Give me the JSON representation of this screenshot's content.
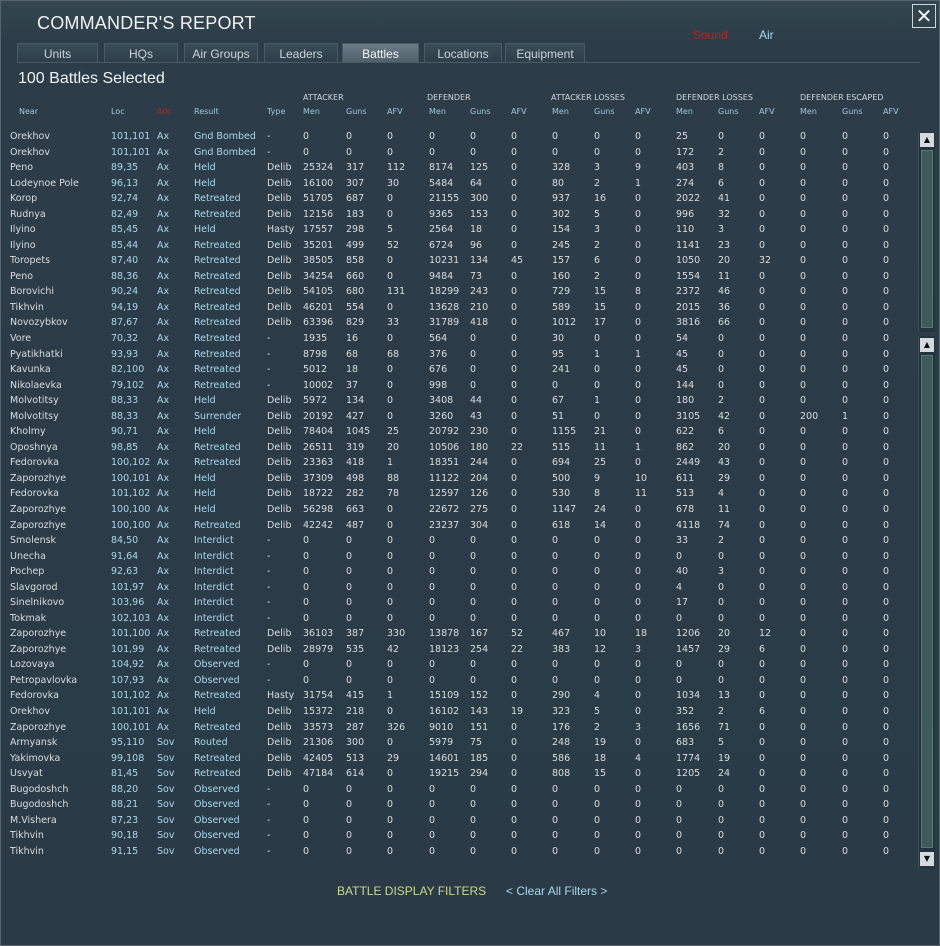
{
  "window": {
    "title": "COMMANDER'S REPORT",
    "close_icon": "close-icon",
    "toggles": {
      "sound": "Sound",
      "air": "Air",
      "sound_color": "#b0251c",
      "air_color": "#a8d8ec"
    }
  },
  "tabs": [
    {
      "label": "Units"
    },
    {
      "label": "HQs"
    },
    {
      "label": "Air Groups"
    },
    {
      "label": "Leaders"
    },
    {
      "label": "Battles",
      "active": true
    },
    {
      "label": "Locations"
    },
    {
      "label": "Equipment"
    }
  ],
  "summary": {
    "selected": "100 Battles Selected"
  },
  "header": {
    "groups": {
      "attacker": "ATTACKER",
      "defender": "DEFENDER",
      "attacker_losses": "ATTACKER LOSSES",
      "defender_losses": "DEFENDER LOSSES",
      "defender_escaped": "DEFENDER ESCAPED"
    },
    "columns": {
      "near": "Near",
      "loc": "Loc",
      "side": "Atk",
      "result": "Result",
      "type": "Type",
      "men": "Men",
      "guns": "Guns",
      "afv": "AFV"
    }
  },
  "battles": [
    [
      "Orekhov",
      "101,101",
      "Ax",
      "Gnd Bombed",
      "-",
      "0",
      "0",
      "0",
      "0",
      "0",
      "0",
      "0",
      "0",
      "0",
      "25",
      "0",
      "0",
      "0",
      "0",
      "0"
    ],
    [
      "Orekhov",
      "101,101",
      "Ax",
      "Gnd Bombed",
      "-",
      "0",
      "0",
      "0",
      "0",
      "0",
      "0",
      "0",
      "0",
      "0",
      "172",
      "2",
      "0",
      "0",
      "0",
      "0"
    ],
    [
      "Peno",
      "89,35",
      "Ax",
      "Held",
      "Delib",
      "25324",
      "317",
      "112",
      "8174",
      "125",
      "0",
      "328",
      "3",
      "9",
      "403",
      "8",
      "0",
      "0",
      "0",
      "0"
    ],
    [
      "Lodeynoe Pole",
      "96,13",
      "Ax",
      "Held",
      "Delib",
      "16100",
      "307",
      "30",
      "5484",
      "64",
      "0",
      "80",
      "2",
      "1",
      "274",
      "6",
      "0",
      "0",
      "0",
      "0"
    ],
    [
      "Korop",
      "92,74",
      "Ax",
      "Retreated",
      "Delib",
      "51705",
      "687",
      "0",
      "21155",
      "300",
      "0",
      "937",
      "16",
      "0",
      "2022",
      "41",
      "0",
      "0",
      "0",
      "0"
    ],
    [
      "Rudnya",
      "82,49",
      "Ax",
      "Retreated",
      "Delib",
      "12156",
      "183",
      "0",
      "9365",
      "153",
      "0",
      "302",
      "5",
      "0",
      "996",
      "32",
      "0",
      "0",
      "0",
      "0"
    ],
    [
      "Ilyino",
      "85,45",
      "Ax",
      "Held",
      "Hasty",
      "17557",
      "298",
      "5",
      "2564",
      "18",
      "0",
      "154",
      "3",
      "0",
      "110",
      "3",
      "0",
      "0",
      "0",
      "0"
    ],
    [
      "Ilyino",
      "85,44",
      "Ax",
      "Retreated",
      "Delib",
      "35201",
      "499",
      "52",
      "6724",
      "96",
      "0",
      "245",
      "2",
      "0",
      "1141",
      "23",
      "0",
      "0",
      "0",
      "0"
    ],
    [
      "Toropets",
      "87,40",
      "Ax",
      "Retreated",
      "Delib",
      "38505",
      "858",
      "0",
      "10231",
      "134",
      "45",
      "157",
      "6",
      "0",
      "1050",
      "20",
      "32",
      "0",
      "0",
      "0"
    ],
    [
      "Peno",
      "88,36",
      "Ax",
      "Retreated",
      "Delib",
      "34254",
      "660",
      "0",
      "9484",
      "73",
      "0",
      "160",
      "2",
      "0",
      "1554",
      "11",
      "0",
      "0",
      "0",
      "0"
    ],
    [
      "Borovichi",
      "90,24",
      "Ax",
      "Retreated",
      "Delib",
      "54105",
      "680",
      "131",
      "18299",
      "243",
      "0",
      "729",
      "15",
      "8",
      "2372",
      "46",
      "0",
      "0",
      "0",
      "0"
    ],
    [
      "Tikhvin",
      "94,19",
      "Ax",
      "Retreated",
      "Delib",
      "46201",
      "554",
      "0",
      "13628",
      "210",
      "0",
      "589",
      "15",
      "0",
      "2015",
      "36",
      "0",
      "0",
      "0",
      "0"
    ],
    [
      "Novozybkov",
      "87,67",
      "Ax",
      "Retreated",
      "Delib",
      "63396",
      "829",
      "33",
      "31789",
      "418",
      "0",
      "1012",
      "17",
      "0",
      "3816",
      "66",
      "0",
      "0",
      "0",
      "0"
    ],
    [
      "Vore",
      "70,32",
      "Ax",
      "Retreated",
      "-",
      "1935",
      "16",
      "0",
      "564",
      "0",
      "0",
      "30",
      "0",
      "0",
      "54",
      "0",
      "0",
      "0",
      "0",
      "0"
    ],
    [
      "Pyatikhatki",
      "93,93",
      "Ax",
      "Retreated",
      "-",
      "8798",
      "68",
      "68",
      "376",
      "0",
      "0",
      "95",
      "1",
      "1",
      "45",
      "0",
      "0",
      "0",
      "0",
      "0"
    ],
    [
      "Kavunka",
      "82,100",
      "Ax",
      "Retreated",
      "-",
      "5012",
      "18",
      "0",
      "676",
      "0",
      "0",
      "241",
      "0",
      "0",
      "45",
      "0",
      "0",
      "0",
      "0",
      "0"
    ],
    [
      "Nikolaevka",
      "79,102",
      "Ax",
      "Retreated",
      "-",
      "10002",
      "37",
      "0",
      "998",
      "0",
      "0",
      "0",
      "0",
      "0",
      "144",
      "0",
      "0",
      "0",
      "0",
      "0"
    ],
    [
      "Molvotitsy",
      "88,33",
      "Ax",
      "Held",
      "Delib",
      "5972",
      "134",
      "0",
      "3408",
      "44",
      "0",
      "67",
      "1",
      "0",
      "180",
      "2",
      "0",
      "0",
      "0",
      "0"
    ],
    [
      "Molvotitsy",
      "88,33",
      "Ax",
      "Surrender",
      "Delib",
      "20192",
      "427",
      "0",
      "3260",
      "43",
      "0",
      "51",
      "0",
      "0",
      "3105",
      "42",
      "0",
      "200",
      "1",
      "0"
    ],
    [
      "Kholmy",
      "90,71",
      "Ax",
      "Held",
      "Delib",
      "78404",
      "1045",
      "25",
      "20792",
      "230",
      "0",
      "1155",
      "21",
      "0",
      "622",
      "6",
      "0",
      "0",
      "0",
      "0"
    ],
    [
      "Oposhnya",
      "98,85",
      "Ax",
      "Retreated",
      "Delib",
      "26511",
      "319",
      "20",
      "10506",
      "180",
      "22",
      "515",
      "11",
      "1",
      "862",
      "20",
      "0",
      "0",
      "0",
      "0"
    ],
    [
      "Fedorovka",
      "100,102",
      "Ax",
      "Retreated",
      "Delib",
      "23363",
      "418",
      "1",
      "18351",
      "244",
      "0",
      "694",
      "25",
      "0",
      "2449",
      "43",
      "0",
      "0",
      "0",
      "0"
    ],
    [
      "Zaporozhye",
      "100,101",
      "Ax",
      "Held",
      "Delib",
      "37309",
      "498",
      "88",
      "11122",
      "204",
      "0",
      "500",
      "9",
      "10",
      "611",
      "29",
      "0",
      "0",
      "0",
      "0"
    ],
    [
      "Fedorovka",
      "101,102",
      "Ax",
      "Held",
      "Delib",
      "18722",
      "282",
      "78",
      "12597",
      "126",
      "0",
      "530",
      "8",
      "11",
      "513",
      "4",
      "0",
      "0",
      "0",
      "0"
    ],
    [
      "Zaporozhye",
      "100,100",
      "Ax",
      "Held",
      "Delib",
      "56298",
      "663",
      "0",
      "22672",
      "275",
      "0",
      "1147",
      "24",
      "0",
      "678",
      "11",
      "0",
      "0",
      "0",
      "0"
    ],
    [
      "Zaporozhye",
      "100,100",
      "Ax",
      "Retreated",
      "Delib",
      "42242",
      "487",
      "0",
      "23237",
      "304",
      "0",
      "618",
      "14",
      "0",
      "4118",
      "74",
      "0",
      "0",
      "0",
      "0"
    ],
    [
      "Smolensk",
      "84,50",
      "Ax",
      "Interdict",
      "-",
      "0",
      "0",
      "0",
      "0",
      "0",
      "0",
      "0",
      "0",
      "0",
      "33",
      "2",
      "0",
      "0",
      "0",
      "0"
    ],
    [
      "Unecha",
      "91,64",
      "Ax",
      "Interdict",
      "-",
      "0",
      "0",
      "0",
      "0",
      "0",
      "0",
      "0",
      "0",
      "0",
      "0",
      "0",
      "0",
      "0",
      "0",
      "0"
    ],
    [
      "Pochep",
      "92,63",
      "Ax",
      "Interdict",
      "-",
      "0",
      "0",
      "0",
      "0",
      "0",
      "0",
      "0",
      "0",
      "0",
      "40",
      "3",
      "0",
      "0",
      "0",
      "0"
    ],
    [
      "Slavgorod",
      "101,97",
      "Ax",
      "Interdict",
      "-",
      "0",
      "0",
      "0",
      "0",
      "0",
      "0",
      "0",
      "0",
      "0",
      "4",
      "0",
      "0",
      "0",
      "0",
      "0"
    ],
    [
      "Sinelnikovo",
      "103,96",
      "Ax",
      "Interdict",
      "-",
      "0",
      "0",
      "0",
      "0",
      "0",
      "0",
      "0",
      "0",
      "0",
      "17",
      "0",
      "0",
      "0",
      "0",
      "0"
    ],
    [
      "Tokmak",
      "102,103",
      "Ax",
      "Interdict",
      "-",
      "0",
      "0",
      "0",
      "0",
      "0",
      "0",
      "0",
      "0",
      "0",
      "0",
      "0",
      "0",
      "0",
      "0",
      "0"
    ],
    [
      "Zaporozhye",
      "101,100",
      "Ax",
      "Retreated",
      "Delib",
      "36103",
      "387",
      "330",
      "13878",
      "167",
      "52",
      "467",
      "10",
      "18",
      "1206",
      "20",
      "12",
      "0",
      "0",
      "0"
    ],
    [
      "Zaporozhye",
      "101,99",
      "Ax",
      "Retreated",
      "Delib",
      "28979",
      "535",
      "42",
      "18123",
      "254",
      "22",
      "383",
      "12",
      "3",
      "1457",
      "29",
      "6",
      "0",
      "0",
      "0"
    ],
    [
      "Lozovaya",
      "104,92",
      "Ax",
      "Observed",
      "-",
      "0",
      "0",
      "0",
      "0",
      "0",
      "0",
      "0",
      "0",
      "0",
      "0",
      "0",
      "0",
      "0",
      "0",
      "0"
    ],
    [
      "Petropavlovka",
      "107,93",
      "Ax",
      "Observed",
      "-",
      "0",
      "0",
      "0",
      "0",
      "0",
      "0",
      "0",
      "0",
      "0",
      "0",
      "0",
      "0",
      "0",
      "0",
      "0"
    ],
    [
      "Fedorovka",
      "101,102",
      "Ax",
      "Retreated",
      "Hasty",
      "31754",
      "415",
      "1",
      "15109",
      "152",
      "0",
      "290",
      "4",
      "0",
      "1034",
      "13",
      "0",
      "0",
      "0",
      "0"
    ],
    [
      "Orekhov",
      "101,101",
      "Ax",
      "Held",
      "Delib",
      "15372",
      "218",
      "0",
      "16102",
      "143",
      "19",
      "323",
      "5",
      "0",
      "352",
      "2",
      "6",
      "0",
      "0",
      "0"
    ],
    [
      "Zaporozhye",
      "100,101",
      "Ax",
      "Retreated",
      "Delib",
      "33573",
      "287",
      "326",
      "9010",
      "151",
      "0",
      "176",
      "2",
      "3",
      "1656",
      "71",
      "0",
      "0",
      "0",
      "0"
    ],
    [
      "Armyansk",
      "95,110",
      "Sov",
      "Routed",
      "Delib",
      "21306",
      "300",
      "0",
      "5979",
      "75",
      "0",
      "248",
      "19",
      "0",
      "683",
      "5",
      "0",
      "0",
      "0",
      "0"
    ],
    [
      "Yakimovka",
      "99,108",
      "Sov",
      "Retreated",
      "Delib",
      "42405",
      "513",
      "29",
      "14601",
      "185",
      "0",
      "586",
      "18",
      "4",
      "1774",
      "19",
      "0",
      "0",
      "0",
      "0"
    ],
    [
      "Usvyat",
      "81,45",
      "Sov",
      "Retreated",
      "Delib",
      "47184",
      "614",
      "0",
      "19215",
      "294",
      "0",
      "808",
      "15",
      "0",
      "1205",
      "24",
      "0",
      "0",
      "0",
      "0"
    ],
    [
      "Bugodoshch",
      "88,20",
      "Sov",
      "Observed",
      "-",
      "0",
      "0",
      "0",
      "0",
      "0",
      "0",
      "0",
      "0",
      "0",
      "0",
      "0",
      "0",
      "0",
      "0",
      "0"
    ],
    [
      "Bugodoshch",
      "88,21",
      "Sov",
      "Observed",
      "-",
      "0",
      "0",
      "0",
      "0",
      "0",
      "0",
      "0",
      "0",
      "0",
      "0",
      "0",
      "0",
      "0",
      "0",
      "0"
    ],
    [
      "M.Vishera",
      "87,23",
      "Sov",
      "Observed",
      "-",
      "0",
      "0",
      "0",
      "0",
      "0",
      "0",
      "0",
      "0",
      "0",
      "0",
      "0",
      "0",
      "0",
      "0",
      "0"
    ],
    [
      "Tikhvin",
      "90,18",
      "Sov",
      "Observed",
      "-",
      "0",
      "0",
      "0",
      "0",
      "0",
      "0",
      "0",
      "0",
      "0",
      "0",
      "0",
      "0",
      "0",
      "0",
      "0"
    ],
    [
      "Tikhvin",
      "91,15",
      "Sov",
      "Observed",
      "-",
      "0",
      "0",
      "0",
      "0",
      "0",
      "0",
      "0",
      "0",
      "0",
      "0",
      "0",
      "0",
      "0",
      "0",
      "0"
    ]
  ],
  "scrollbars": {
    "up_icon": "arrow-up-icon",
    "down_icon": "arrow-down-icon"
  },
  "footer": {
    "filters_label": "BATTLE DISPLAY FILTERS",
    "clear_label": "< Clear All Filters >"
  }
}
